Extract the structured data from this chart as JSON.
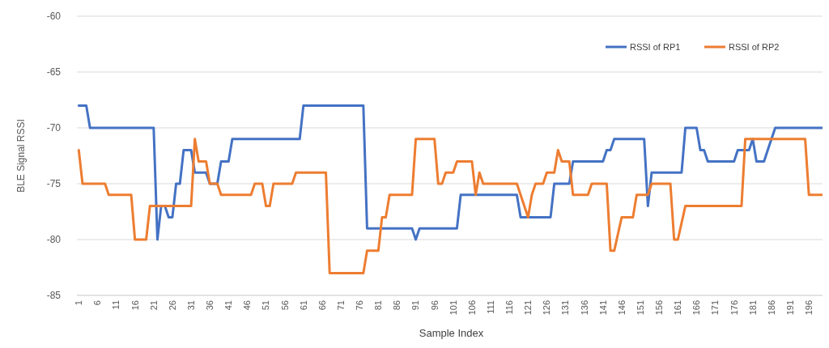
{
  "chart_data": {
    "type": "line",
    "xlabel": "Sample Index",
    "ylabel": "BLE Signal RSSI",
    "xlim": [
      0.5,
      200.5
    ],
    "xticks": [
      1,
      6,
      11,
      16,
      21,
      26,
      31,
      36,
      41,
      46,
      51,
      56,
      61,
      66,
      71,
      76,
      81,
      86,
      91,
      96,
      101,
      106,
      111,
      116,
      121,
      126,
      131,
      136,
      141,
      146,
      151,
      156,
      161,
      166,
      171,
      176,
      181,
      186,
      191,
      196
    ],
    "ylim": [
      -85,
      -60
    ],
    "yticks": [
      -85,
      -80,
      -75,
      -70,
      -65,
      -60
    ],
    "grid": "y",
    "legend": "top right",
    "marker": "none",
    "line_style": "solid",
    "series": [
      {
        "name": "RSSI of RP1",
        "color": "#4472c4",
        "x": [
          1,
          3,
          4,
          21,
          22,
          23,
          24,
          25,
          26,
          27,
          28,
          29,
          31,
          32,
          35,
          36,
          38,
          39,
          41,
          42,
          60,
          61,
          77,
          78,
          90,
          91,
          92,
          102,
          103,
          118,
          119,
          127,
          128,
          132,
          133,
          141,
          142,
          143,
          144,
          152,
          153,
          154,
          162,
          163,
          166,
          167,
          168,
          169,
          176,
          177,
          180,
          181,
          182,
          184,
          185,
          186,
          187,
          200
        ],
        "values": [
          -68,
          -68,
          -70,
          -70,
          -80,
          -77,
          -77,
          -78,
          -78,
          -75,
          -75,
          -72,
          -72,
          -74,
          -74,
          -75,
          -75,
          -73,
          -73,
          -71,
          -71,
          -68,
          -68,
          -79,
          -79,
          -80,
          -79,
          -79,
          -76,
          -76,
          -78,
          -78,
          -75,
          -75,
          -73,
          -73,
          -72,
          -72,
          -71,
          -71,
          -77,
          -74,
          -74,
          -70,
          -70,
          -72,
          -72,
          -73,
          -73,
          -72,
          -72,
          -71,
          -73,
          -73,
          -72,
          -71,
          -70,
          -70
        ]
      },
      {
        "name": "RSSI of RP2",
        "color": "#ed7d31",
        "x": [
          1,
          2,
          8,
          9,
          15,
          16,
          19,
          20,
          31,
          32,
          33,
          35,
          36,
          38,
          39,
          47,
          48,
          50,
          51,
          52,
          53,
          58,
          59,
          67,
          68,
          77,
          78,
          81,
          82,
          83,
          84,
          90,
          91,
          96,
          97,
          98,
          99,
          101,
          102,
          106,
          107,
          108,
          109,
          118,
          121,
          122,
          123,
          125,
          126,
          128,
          129,
          130,
          132,
          133,
          137,
          138,
          142,
          143,
          144,
          146,
          149,
          150,
          153,
          154,
          159,
          160,
          161,
          163,
          178,
          179,
          195,
          196,
          200
        ],
        "values": [
          -72,
          -75,
          -75,
          -76,
          -76,
          -80,
          -80,
          -77,
          -77,
          -71,
          -73,
          -73,
          -75,
          -75,
          -76,
          -76,
          -75,
          -75,
          -77,
          -77,
          -75,
          -75,
          -74,
          -74,
          -83,
          -83,
          -81,
          -81,
          -78,
          -78,
          -76,
          -76,
          -71,
          -71,
          -75,
          -75,
          -74,
          -74,
          -73,
          -73,
          -76,
          -74,
          -75,
          -75,
          -78,
          -76,
          -75,
          -75,
          -74,
          -74,
          -72,
          -73,
          -73,
          -76,
          -76,
          -75,
          -75,
          -81,
          -81,
          -78,
          -78,
          -76,
          -76,
          -75,
          -75,
          -80,
          -80,
          -77,
          -77,
          -71,
          -71,
          -76,
          -76
        ]
      }
    ]
  }
}
